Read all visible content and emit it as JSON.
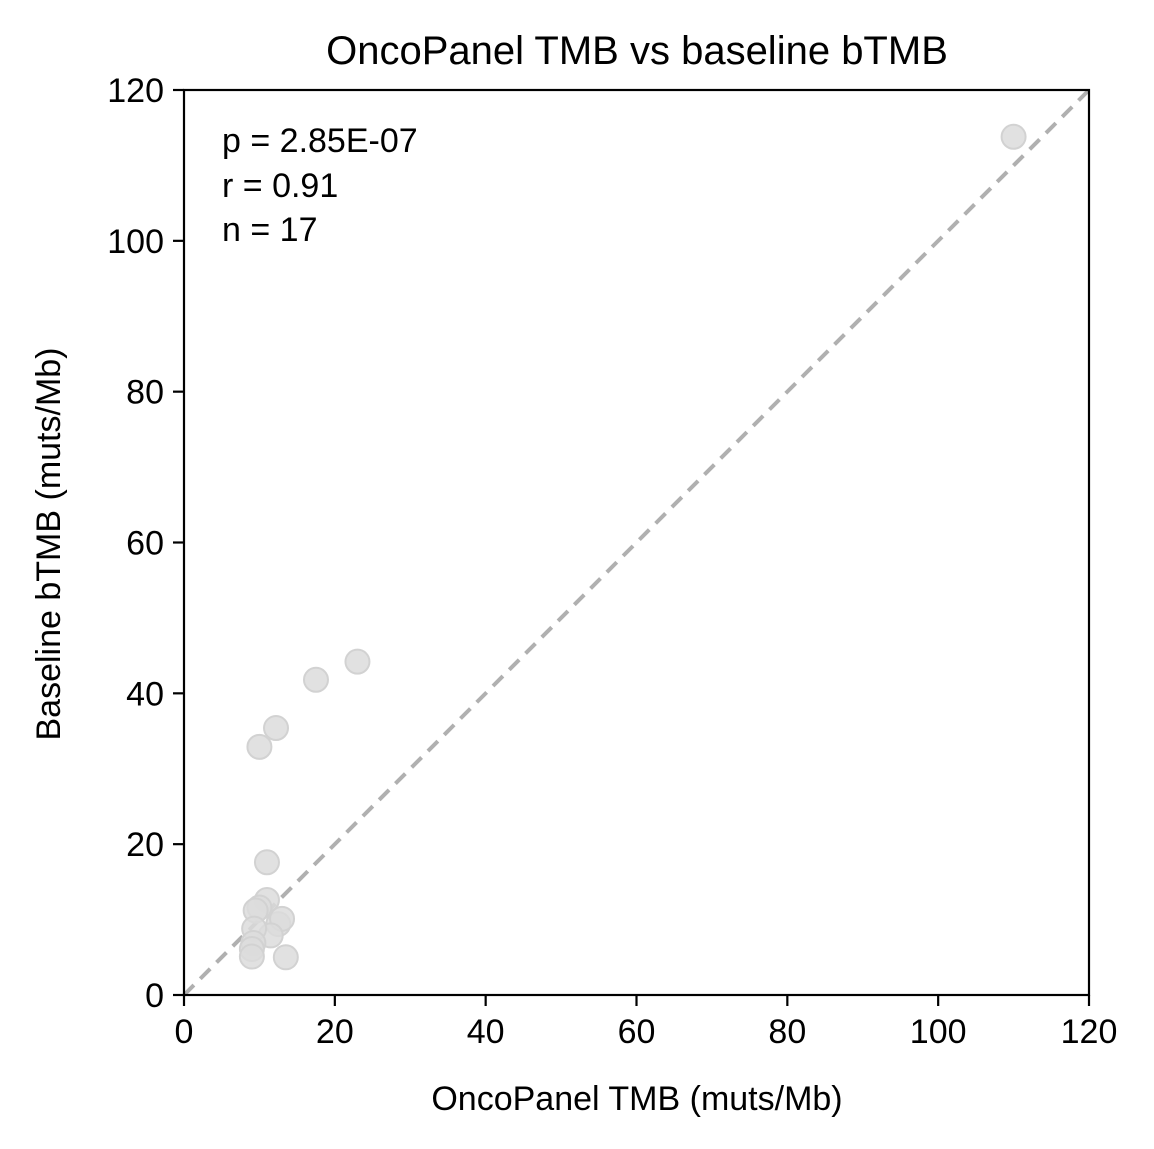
{
  "chart_data": {
    "type": "scatter",
    "title": "OncoPanel TMB vs baseline bTMB",
    "xlabel": "OncoPanel TMB (muts/Mb)",
    "ylabel": "Baseline bTMB (muts/Mb)",
    "xlim": [
      0,
      120
    ],
    "ylim": [
      0,
      120
    ],
    "xticks": [
      0,
      20,
      40,
      60,
      80,
      100,
      120
    ],
    "yticks": [
      0,
      20,
      40,
      60,
      80,
      100,
      120
    ],
    "grid": false,
    "reference_line": {
      "kind": "identity",
      "style": "dashed",
      "color": "#b0b0b0"
    },
    "marker_color": "#dcdcdc",
    "annotations": [
      "p = 2.85E-07",
      "r = 0.91",
      "n = 17"
    ],
    "series": [
      {
        "x": [
          110.0,
          23.0,
          17.5,
          12.2,
          10.0,
          11.0,
          11.0,
          10.0,
          9.5,
          12.5,
          13.0,
          11.5,
          9.3,
          9.2,
          9.0,
          9.0,
          13.5
        ],
        "y": [
          113.8,
          44.2,
          41.8,
          35.4,
          32.9,
          17.6,
          12.6,
          11.6,
          11.2,
          9.4,
          10.1,
          7.9,
          8.8,
          6.9,
          6.1,
          5.1,
          5.0
        ]
      }
    ]
  }
}
